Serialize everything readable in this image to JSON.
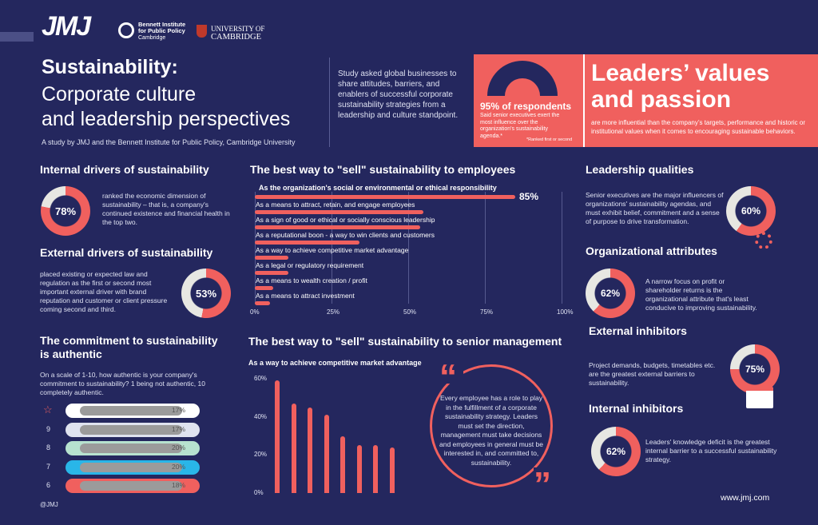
{
  "header": {
    "logo_jmj": "JMJ",
    "logo_bennett": "Bennett Institute for Public Policy",
    "logo_bennett_sub": "Cambridge",
    "logo_cambridge_top": "UNIVERSITY OF",
    "logo_cambridge_bottom": "CAMBRIDGE",
    "title": "Sustainability:",
    "subtitle_line1": "Corporate culture",
    "subtitle_line2": "and leadership perspectives",
    "byline": "A study by JMJ and the Bennett Institute for Public Policy, Cambridge University",
    "study_text": "Study asked global businesses to share attitudes, barriers, and enablers of successful corporate sustainability strategies from a leadership and culture standpoint."
  },
  "banner": {
    "stat": "95% of respondents",
    "stat_value": 95,
    "stat_desc": "Said senior executives exert the most influence over the organization's sustainability agenda.*",
    "footnote": "*Ranked first or second",
    "headline_line1": "Leaders’ values",
    "headline_line2": "and passion",
    "headline_desc": "are more influential than the company’s targets, performance and historic or institutional values when it comes to encouraging sustainable behaviors."
  },
  "internal_drivers": {
    "title": "Internal drivers of sustainability",
    "percent_label": "78%",
    "percent": 78,
    "text": "ranked the economic dimension of sustainability – that is, a company's continued existence and financial health in the top two."
  },
  "external_drivers": {
    "title": "External drivers of sustainability",
    "percent_label": "53%",
    "percent": 53,
    "text": "placed existing or expected law and regulation as the first or second most important external driver with brand reputation and customer or client pressure coming second and third."
  },
  "commitment": {
    "title_line1": "The commitment to sustainability",
    "title_line2": "is authentic",
    "question": "On a scale of 1-10, how authentic is your company's commitment to sustainability? 1 being not authentic, 10 completely authentic.",
    "rows": [
      {
        "score": "10",
        "value": "17%",
        "color": "#ffffff"
      },
      {
        "score": "9",
        "value": "17%",
        "color": "#dfe3ef"
      },
      {
        "score": "8",
        "value": "20%",
        "color": "#b7e2cf"
      },
      {
        "score": "7",
        "value": "20%",
        "color": "#29b6e8"
      },
      {
        "score": "6",
        "value": "18%",
        "color": "#f0605e"
      }
    ],
    "handle": "@JMJ"
  },
  "employees_chart": {
    "title": "The best way to \"sell\" sustainability to employees",
    "top_label": "As the organization's social or environmental or ethical responsibility",
    "top_value_label": "85%",
    "chart_data": {
      "type": "bar",
      "orientation": "horizontal",
      "categories": [
        "As the organization's social or environmental or ethical responsibility",
        "As a means to attract, retain, and engage employees",
        "As a sign of good or ethical or socially conscious leadership",
        "As a reputational boon - a way to win clients and customers",
        "As a way to achieve competitive market advantage",
        "As a legal or regulatory requirement",
        "As a means to wealth creation / profit",
        "As a means to attract investment"
      ],
      "values": [
        85,
        55,
        54,
        34,
        11,
        11,
        6,
        5
      ],
      "xlim": [
        0,
        100
      ],
      "ticks": [
        "0%",
        "25%",
        "50%",
        "75%",
        "100%"
      ]
    }
  },
  "senior_chart": {
    "title": "The best way to \"sell\" sustainability to senior management",
    "subtitle": "As a way to achieve competitive market advantage",
    "chart_data": {
      "type": "bar",
      "values": [
        59,
        47,
        45,
        41,
        30,
        25,
        25,
        24
      ],
      "ylim": [
        0,
        60
      ],
      "ticks": [
        "60%",
        "40%",
        "20%",
        "0%"
      ]
    }
  },
  "quote": {
    "text": "Every employee has a role to play in the fulfillment of a corporate sustainability strategy. Leaders must set the direction, management must take decisions and employees in general must be interested in, and committed to, sustainability."
  },
  "leadership": {
    "title": "Leadership qualities",
    "text": "Senior executives are the major influencers of organizations' sustainability agendas, and must exhibit belief, commitment and a sense of purpose to drive transformation.",
    "percent_label": "60%",
    "percent": 60
  },
  "org_attributes": {
    "title": "Organizational attributes",
    "percent_label": "62%",
    "percent": 62,
    "text": "A narrow focus on profit or shareholder returns is the organizational attribute that's least conducive to improving sustainability."
  },
  "external_inhibitors": {
    "title": "External inhibitors",
    "text": "Project demands, budgets, timetables etc. are the greatest external barriers to sustainability.",
    "percent_label": "75%",
    "percent": 75
  },
  "internal_inhibitors": {
    "title": "Internal inhibitors",
    "percent_label": "62%",
    "percent": 62,
    "text": "Leaders' knowledge deficit is the greatest internal barrier to a successful sustainability strategy."
  },
  "footer": {
    "url": "www.jmj.com"
  }
}
